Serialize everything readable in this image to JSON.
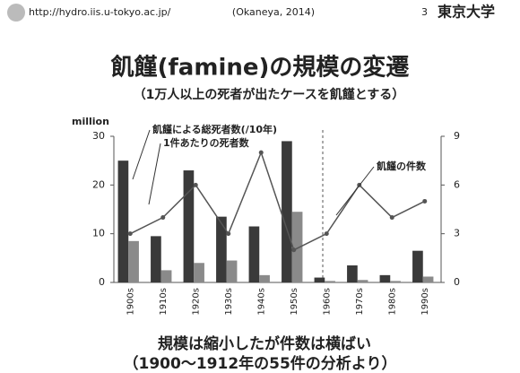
{
  "header": {
    "url": "http://hydro.iis.u-tokyo.ac.jp/",
    "citation": "(Okaneya, 2014)",
    "page": "3",
    "logo": "東京大学"
  },
  "footer": [
    "規模は縮小したが件数は横ばい",
    "（1900〜1912年の55件の分析より）"
  ],
  "chart_data": {
    "type": "bar",
    "title": "飢饉(famine)の規模の変遷",
    "subtitle": "（1万人以上の死者が出たケースを飢饉とする）",
    "y_label": "million",
    "categories": [
      "1900s",
      "1910s",
      "1920s",
      "1930s",
      "1940s",
      "1950s",
      "1960s",
      "1970s",
      "1980s",
      "1990s"
    ],
    "series": [
      {
        "name": "飢饉による総死者数(/10年)",
        "color": "#3a3a3a",
        "type": "bar",
        "values": [
          25,
          9.5,
          23,
          13.5,
          11.5,
          29,
          1,
          3.5,
          1.5,
          6.5
        ]
      },
      {
        "name": "1件あたりの死者数",
        "color": "#8a8a8a",
        "type": "bar",
        "values": [
          8.5,
          2.5,
          4,
          4.5,
          1.5,
          14.5,
          0.3,
          0.5,
          0.3,
          1.2
        ]
      },
      {
        "name": "飢饉の件数",
        "color": "#555555",
        "type": "line",
        "axis": "y2",
        "values": [
          3,
          4,
          6,
          3,
          8,
          2,
          3,
          6,
          4,
          5
        ]
      }
    ],
    "ylim": [
      0,
      30
    ],
    "yticks": [
      0,
      10,
      20,
      30
    ],
    "y2lim": [
      0,
      9
    ],
    "y2ticks": [
      0,
      3,
      6,
      9
    ],
    "grid": false
  }
}
